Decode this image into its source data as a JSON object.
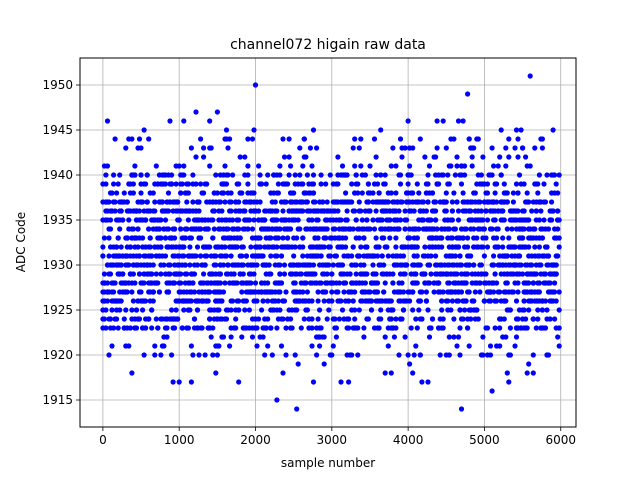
{
  "chart_data": {
    "type": "scatter",
    "title": "channel072 higain raw data",
    "xlabel": "sample number",
    "ylabel": "ADC Code",
    "xlim": [
      -300,
      6200
    ],
    "ylim": [
      1912,
      1953
    ],
    "xticks": [
      0,
      1000,
      2000,
      3000,
      4000,
      5000,
      6000
    ],
    "yticks": [
      1915,
      1920,
      1925,
      1930,
      1935,
      1940,
      1945,
      1950
    ],
    "grid": true,
    "marker_color": "#0000ff",
    "n_samples": 6000,
    "x_step": 20,
    "band": {
      "dense_levels": [
        1926,
        1927,
        1928,
        1929,
        1930,
        1931,
        1932,
        1933,
        1934,
        1935,
        1936,
        1937
      ],
      "medium_levels": [
        1923,
        1924,
        1925,
        1938,
        1939,
        1940
      ],
      "sparse_levels": [
        1920,
        1921,
        1922,
        1941,
        1942,
        1943,
        1944
      ]
    },
    "outliers": [
      {
        "x": 60,
        "y": 1946
      },
      {
        "x": 380,
        "y": 1918
      },
      {
        "x": 540,
        "y": 1945
      },
      {
        "x": 880,
        "y": 1946
      },
      {
        "x": 920,
        "y": 1917
      },
      {
        "x": 1000,
        "y": 1917
      },
      {
        "x": 1060,
        "y": 1946
      },
      {
        "x": 1160,
        "y": 1917
      },
      {
        "x": 1220,
        "y": 1947
      },
      {
        "x": 1400,
        "y": 1946
      },
      {
        "x": 1480,
        "y": 1918
      },
      {
        "x": 1500,
        "y": 1947
      },
      {
        "x": 1620,
        "y": 1945
      },
      {
        "x": 1780,
        "y": 1917
      },
      {
        "x": 1980,
        "y": 1945
      },
      {
        "x": 2000,
        "y": 1950
      },
      {
        "x": 2280,
        "y": 1915
      },
      {
        "x": 2360,
        "y": 1918
      },
      {
        "x": 2540,
        "y": 1914
      },
      {
        "x": 2560,
        "y": 1919
      },
      {
        "x": 2760,
        "y": 1945
      },
      {
        "x": 2760,
        "y": 1917
      },
      {
        "x": 2900,
        "y": 1919
      },
      {
        "x": 3120,
        "y": 1917
      },
      {
        "x": 3220,
        "y": 1917
      },
      {
        "x": 3640,
        "y": 1945
      },
      {
        "x": 3700,
        "y": 1918
      },
      {
        "x": 3780,
        "y": 1918
      },
      {
        "x": 4000,
        "y": 1946
      },
      {
        "x": 4020,
        "y": 1919
      },
      {
        "x": 4060,
        "y": 1918
      },
      {
        "x": 4180,
        "y": 1917
      },
      {
        "x": 4260,
        "y": 1917
      },
      {
        "x": 4380,
        "y": 1946
      },
      {
        "x": 4460,
        "y": 1946
      },
      {
        "x": 4660,
        "y": 1946
      },
      {
        "x": 4700,
        "y": 1914
      },
      {
        "x": 4720,
        "y": 1946
      },
      {
        "x": 4780,
        "y": 1949
      },
      {
        "x": 5100,
        "y": 1916
      },
      {
        "x": 5220,
        "y": 1945
      },
      {
        "x": 5300,
        "y": 1918
      },
      {
        "x": 5320,
        "y": 1917
      },
      {
        "x": 5420,
        "y": 1945
      },
      {
        "x": 5480,
        "y": 1945
      },
      {
        "x": 5560,
        "y": 1918
      },
      {
        "x": 5580,
        "y": 1919
      },
      {
        "x": 5600,
        "y": 1951
      },
      {
        "x": 5640,
        "y": 1918
      },
      {
        "x": 5900,
        "y": 1945
      }
    ]
  }
}
